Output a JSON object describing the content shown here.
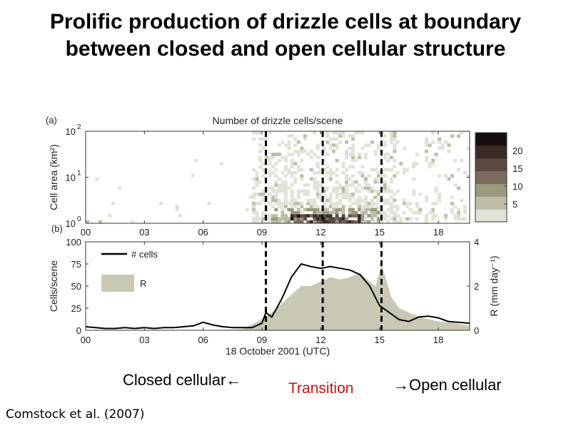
{
  "title": "Prolific production of drizzle cells at boundary between closed and open cellular structure",
  "annotations": {
    "closed": "Closed cellular←",
    "transition": "Transition",
    "open": "→Open cellular",
    "citation": "Comstock et al. (2007)"
  },
  "colors": {
    "transition": "#d01010",
    "shade": "#c8c8b4",
    "colormap": [
      "#e2e2d8",
      "#bdbda8",
      "#9a9a80",
      "#7b6b5e",
      "#5c4a41",
      "#3a2a26",
      "#150f0f"
    ]
  },
  "chart_data": [
    {
      "type": "heatmap",
      "panel_label": "(a)",
      "title": "Number of drizzle cells/scene",
      "ylabel": "Cell area (km²)",
      "y_scale": "log",
      "ylim": [
        1,
        100
      ],
      "y_ticks": [
        {
          "value": 1,
          "base": "10",
          "exp": "0"
        },
        {
          "value": 10,
          "base": "10",
          "exp": "1"
        },
        {
          "value": 100,
          "base": "10",
          "exp": "2"
        }
      ],
      "xlim": [
        0,
        19.6
      ],
      "x_ticks": [
        {
          "value": 0,
          "label": "00"
        },
        {
          "value": 3,
          "label": "03"
        },
        {
          "value": 6,
          "label": "06"
        },
        {
          "value": 9,
          "label": "09"
        },
        {
          "value": 12,
          "label": "12"
        },
        {
          "value": 15,
          "label": "15"
        },
        {
          "value": 18,
          "label": "18"
        }
      ],
      "colorbar": {
        "range": [
          0,
          25
        ],
        "ticks": [
          5,
          10,
          15,
          20
        ]
      },
      "dashed_lines_x": [
        9.2,
        12.1,
        15.1
      ]
    },
    {
      "type": "area",
      "panel_label": "(b)",
      "xlabel": "18 October 2001 (UTC)",
      "ylabel": "Cells/scene",
      "ylabel_right": "R (mm day⁻¹)",
      "xlim": [
        0,
        19.6
      ],
      "ylim": [
        0,
        100
      ],
      "ylim_right": [
        0,
        4
      ],
      "x_ticks": [
        {
          "value": 0,
          "label": "00"
        },
        {
          "value": 3,
          "label": "03"
        },
        {
          "value": 6,
          "label": "06"
        },
        {
          "value": 9,
          "label": "09"
        },
        {
          "value": 12,
          "label": "12"
        },
        {
          "value": 15,
          "label": "15"
        },
        {
          "value": 18,
          "label": "18"
        }
      ],
      "y_ticks": [
        0,
        25,
        50,
        75,
        100
      ],
      "y_ticks_right": [
        0,
        2,
        4
      ],
      "dashed_lines_x": [
        9.2,
        12.1,
        15.1
      ],
      "legend": [
        "# cells",
        "R"
      ],
      "series": [
        {
          "name": "# cells",
          "kind": "line",
          "axis": "left",
          "x": [
            0,
            0.5,
            1,
            1.5,
            2,
            2.5,
            3,
            3.5,
            4,
            4.5,
            5,
            5.5,
            6,
            6.5,
            7,
            7.5,
            8,
            8.5,
            9,
            9.2,
            9.5,
            10,
            10.5,
            11,
            11.5,
            12,
            12.5,
            13,
            13.5,
            14,
            14.5,
            15,
            15.5,
            16,
            16.5,
            17,
            17.5,
            18,
            18.5,
            19,
            19.6
          ],
          "y": [
            4,
            3,
            2,
            2,
            3,
            2,
            3,
            2,
            3,
            3,
            4,
            5,
            9,
            6,
            4,
            3,
            3,
            3,
            8,
            20,
            15,
            35,
            60,
            75,
            72,
            70,
            72,
            70,
            68,
            63,
            50,
            28,
            20,
            12,
            10,
            15,
            16,
            14,
            10,
            9,
            8
          ]
        },
        {
          "name": "R",
          "kind": "area",
          "axis": "right",
          "x": [
            0,
            3,
            6,
            8,
            8.8,
            9.5,
            10,
            10.5,
            11,
            11.5,
            12,
            12.5,
            13,
            13.5,
            14,
            14.5,
            14.8,
            15.1,
            15.3,
            15.6,
            16,
            17,
            18,
            19,
            19.6
          ],
          "y": [
            0,
            0,
            0,
            0.05,
            0.4,
            0.8,
            1.2,
            1.6,
            2.0,
            2.0,
            2.2,
            2.4,
            2.3,
            2.4,
            2.6,
            2.2,
            2.0,
            3.0,
            2.4,
            1.5,
            1.0,
            0.6,
            0.4,
            0.3,
            0.2
          ]
        }
      ]
    }
  ]
}
